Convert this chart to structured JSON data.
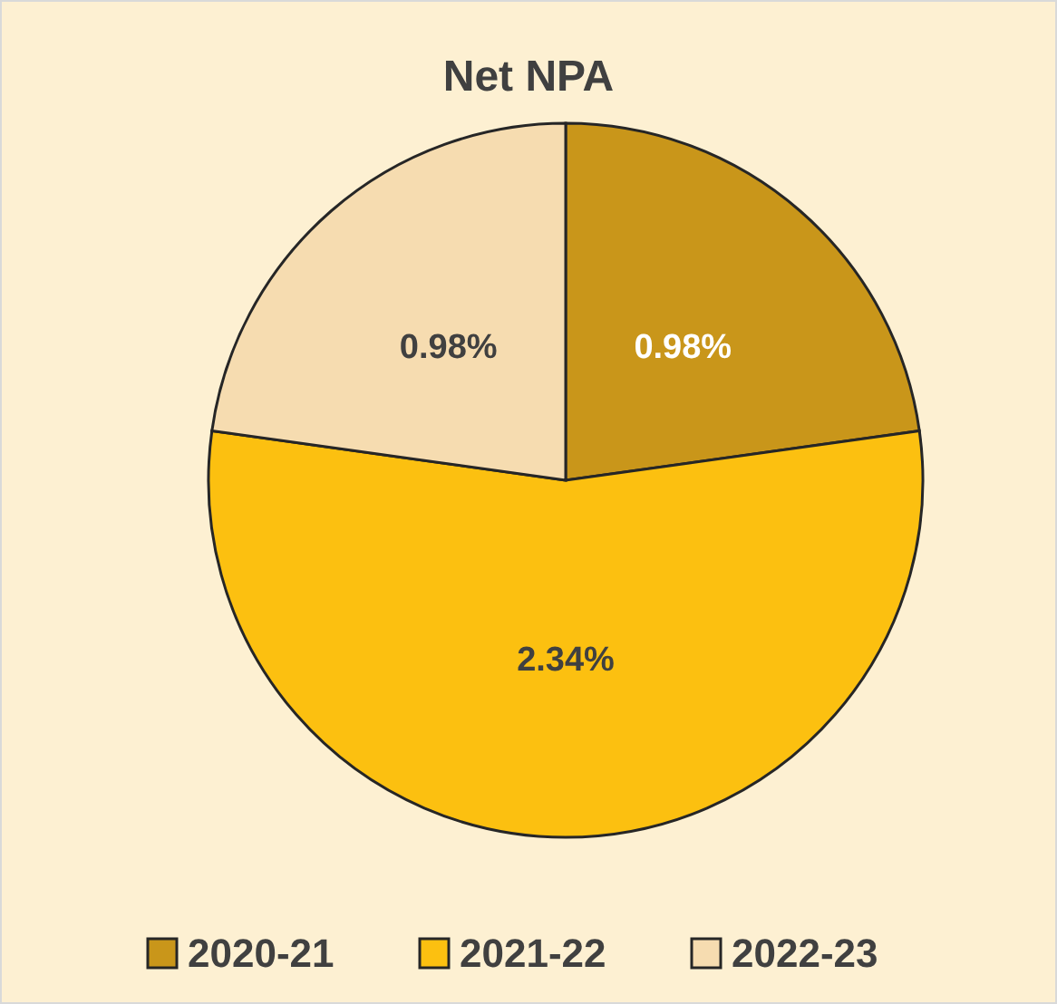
{
  "chart_data": {
    "type": "pie",
    "title": "Net NPA",
    "categories": [
      "2020-21",
      "2021-22",
      "2022-23"
    ],
    "values": [
      0.98,
      2.34,
      0.98
    ],
    "value_labels": [
      "0.98%",
      "2.34%",
      "0.98%"
    ],
    "colors": [
      "#c9961a",
      "#fcc010",
      "#f6dcb0"
    ],
    "legend": "bottom"
  }
}
